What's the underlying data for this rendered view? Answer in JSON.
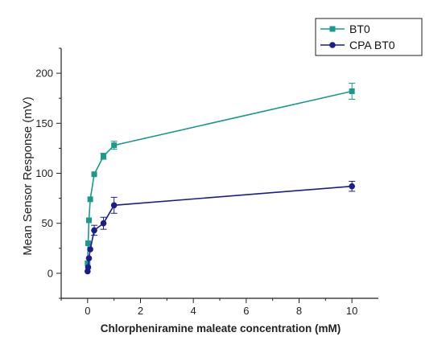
{
  "chart_data": {
    "type": "line",
    "title": "",
    "xlabel": "Chlorpheniramine maleate concentration (mM)",
    "ylabel": "Mean Sensor Response (mV)",
    "xlim": [
      -1,
      11
    ],
    "ylim": [
      -25,
      225
    ],
    "x_ticks": [
      0,
      2,
      4,
      6,
      8,
      10
    ],
    "y_ticks": [
      0,
      50,
      100,
      150,
      200
    ],
    "grid": false,
    "legend_position": "top-right",
    "series": [
      {
        "name": "BT0",
        "color": "#1a9a8c",
        "marker": "square",
        "x": [
          0,
          0.02,
          0.05,
          0.1,
          0.25,
          0.6,
          1,
          10
        ],
        "y": [
          10,
          30,
          53,
          74,
          99,
          117,
          128,
          182
        ],
        "err": [
          0,
          0,
          0,
          0,
          0,
          3,
          4,
          8
        ]
      },
      {
        "name": "CPA BT0",
        "color": "#1c1c8c",
        "marker": "circle",
        "x": [
          0,
          0.02,
          0.05,
          0.1,
          0.25,
          0.6,
          1,
          10
        ],
        "y": [
          2,
          6,
          15,
          24,
          43,
          50,
          68,
          87
        ],
        "err": [
          0,
          0,
          0,
          0,
          5,
          6,
          8,
          5
        ]
      }
    ]
  }
}
